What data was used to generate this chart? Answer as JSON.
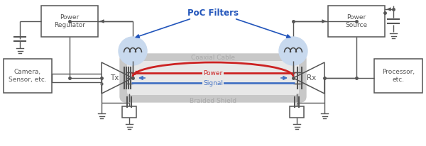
{
  "bg_color": "#ffffff",
  "box_color": "#555555",
  "box_fill": "#ffffff",
  "coil_circle_fill": "#c8d9ee",
  "power_line_color": "#cc2222",
  "signal_line_color": "#4472c4",
  "poc_filter_color": "#2255bb",
  "text_gray": "#aaaaaa",
  "poc_label": "PoC Filters",
  "cable_label": "Coaxial Cable",
  "shield_label": "Braided Shield",
  "power_label": "Power",
  "signal_label": "Signal",
  "tx_label": "Tx",
  "rx_label": "Rx",
  "camera_label": "Camera,\nSensor, etc.",
  "processor_label": "Processor,\netc.",
  "power_reg_label": "Power\nRegulator",
  "power_src_label": "Power\nSource",
  "wire_color": "#555555",
  "cable_outer_color": "#c8c8c8",
  "cable_inner_color": "#e8e8e8"
}
